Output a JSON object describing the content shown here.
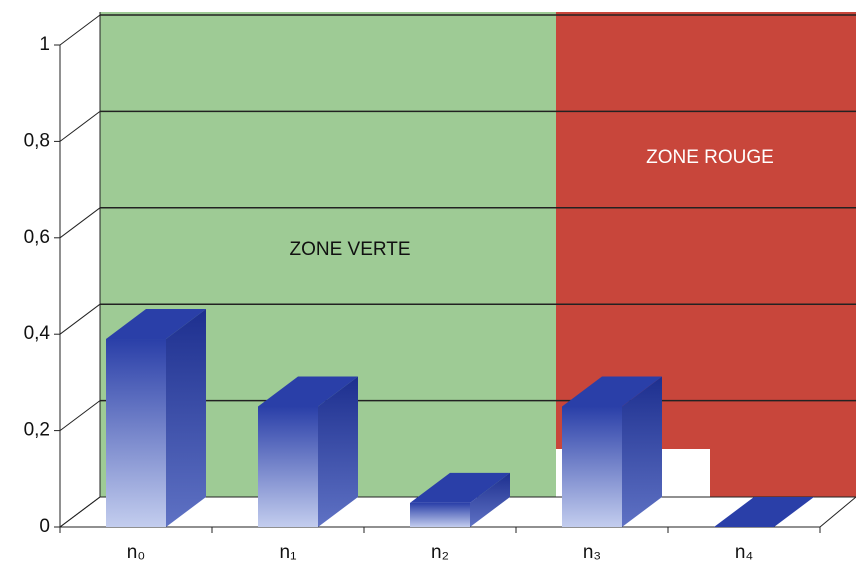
{
  "chart_data": {
    "type": "bar3d",
    "categories": [
      "n₀",
      "n₁",
      "n₂",
      "n₃",
      "n₄"
    ],
    "values": [
      0.39,
      0.25,
      0.05,
      0.25,
      0.0
    ],
    "color": "#2a3fa8",
    "ylim": [
      0,
      1
    ],
    "yticks": [
      {
        "value": 0,
        "label": "0"
      },
      {
        "value": 0.2,
        "label": "0,2"
      },
      {
        "value": 0.4,
        "label": "0,4"
      },
      {
        "value": 0.6,
        "label": "0,6"
      },
      {
        "value": 0.8,
        "label": "0,8"
      },
      {
        "value": 1,
        "label": "1"
      }
    ],
    "grid": true,
    "annotations": [
      "ZONE VERTE",
      "ZONE ROUGE"
    ]
  }
}
